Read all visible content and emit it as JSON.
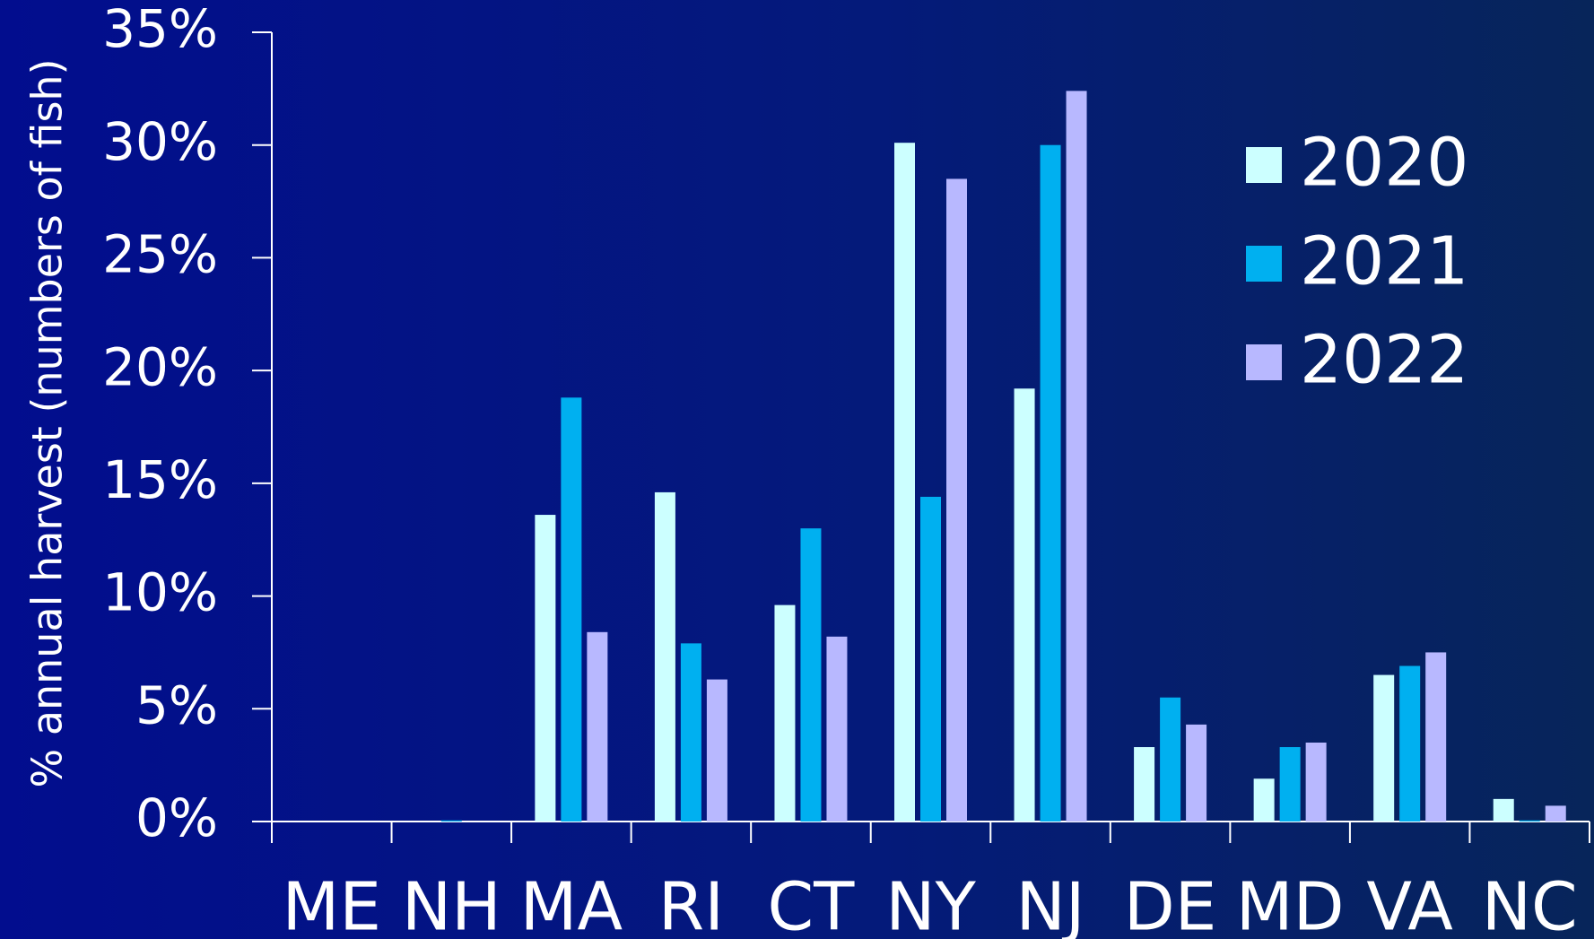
{
  "chart_data": {
    "type": "bar",
    "title": "",
    "xlabel": "",
    "ylabel": "% annual harvest (numbers of fish)",
    "ylim": [
      0,
      35
    ],
    "y_ticks": [
      "0%",
      "5%",
      "10%",
      "15%",
      "20%",
      "25%",
      "30%",
      "35%"
    ],
    "grid": false,
    "legend_position": "top-right",
    "categories": [
      "ME",
      "NH",
      "MA",
      "RI",
      "CT",
      "NY",
      "NJ",
      "DE",
      "MD",
      "VA",
      "NC"
    ],
    "series": [
      {
        "name": "2020",
        "color": "#ccffff",
        "values": [
          0,
          0,
          13.6,
          14.6,
          9.6,
          30.1,
          19.2,
          3.3,
          1.9,
          6.5,
          1.0
        ]
      },
      {
        "name": "2021",
        "color": "#00b0f0",
        "values": [
          0,
          0.05,
          18.8,
          7.9,
          13.0,
          14.4,
          30.0,
          5.5,
          3.3,
          6.9,
          0.05
        ]
      },
      {
        "name": "2022",
        "color": "#b8b8ff",
        "values": [
          0,
          0,
          8.4,
          6.3,
          8.2,
          28.5,
          32.4,
          4.3,
          3.5,
          7.5,
          0.7
        ]
      }
    ]
  }
}
